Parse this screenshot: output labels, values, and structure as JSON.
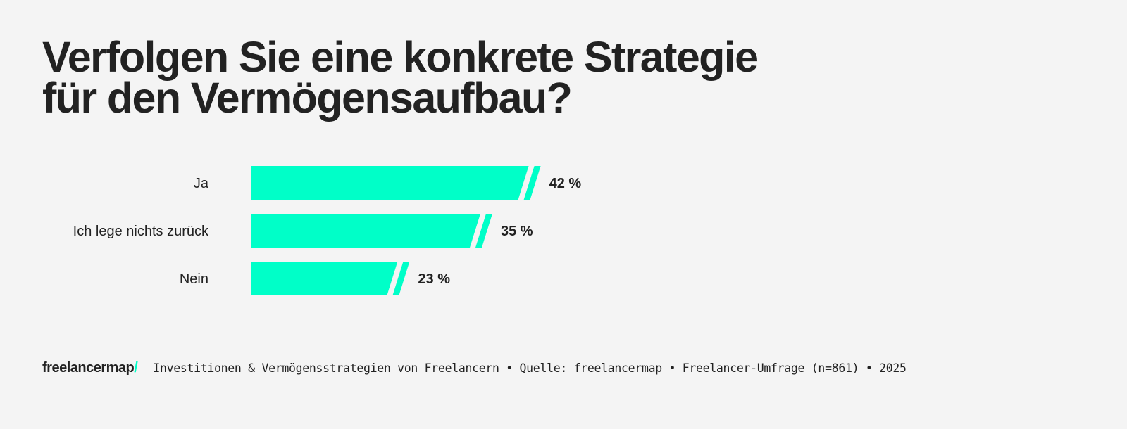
{
  "title": {
    "line1": "Verfolgen Sie eine konkrete Strategie",
    "line2": "für den Vermögensaufbau?"
  },
  "chart_data": {
    "type": "bar",
    "orientation": "horizontal",
    "categories": [
      "Ja",
      "Ich lege nichts zurück",
      "Nein"
    ],
    "values": [
      42,
      35,
      23
    ],
    "value_labels": [
      "42 %",
      "35 %",
      "23 %"
    ],
    "unit": "%",
    "bar_color": "#00ffc8",
    "grid": false,
    "title": "Verfolgen Sie eine konkrete Strategie für den Vermögensaufbau?"
  },
  "footer": {
    "logo_text": "freelancermap",
    "logo_slash": "/",
    "source": "Investitionen & Vermögensstrategien von Freelancern • Quelle: freelancermap • Freelancer-Umfrage (n=861) • 2025"
  }
}
